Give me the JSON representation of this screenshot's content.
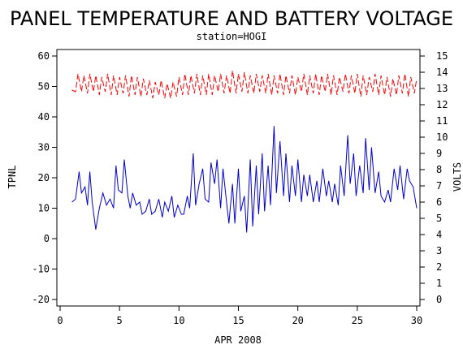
{
  "chart_data": {
    "type": "line",
    "title": "PANEL TEMPERATURE AND BATTERY VOLTAGE",
    "subtitle": "station=HOGI",
    "xlabel": "APR 2008",
    "ylabel_left": "TPNL",
    "ylabel_right": "VOLTS",
    "xlim": [
      0,
      30
    ],
    "ylim_left": [
      -20,
      60
    ],
    "ylim_right": [
      0,
      15
    ],
    "x_ticks": [
      "0",
      "5",
      "10",
      "15",
      "20",
      "25",
      "30"
    ],
    "y_left_ticks": [
      "-20",
      "-10",
      "0",
      "10",
      "20",
      "30",
      "40",
      "50",
      "60"
    ],
    "y_right_ticks": [
      "0",
      "1",
      "2",
      "3",
      "4",
      "5",
      "6",
      "7",
      "8",
      "9",
      "10",
      "11",
      "12",
      "13",
      "14",
      "15"
    ],
    "grid": false,
    "series": [
      {
        "color": "#0000cc",
        "axis": "left",
        "x": [
          1.0,
          1.3,
          1.6,
          1.8,
          2.1,
          2.3,
          2.5,
          2.7,
          3.0,
          3.3,
          3.6,
          3.9,
          4.2,
          4.5,
          4.7,
          4.9,
          5.2,
          5.4,
          5.7,
          5.9,
          6.1,
          6.4,
          6.7,
          6.9,
          7.2,
          7.5,
          7.7,
          8.0,
          8.3,
          8.6,
          8.8,
          9.1,
          9.4,
          9.6,
          9.9,
          10.2,
          10.4,
          10.7,
          10.9,
          11.2,
          11.4,
          11.7,
          12.0,
          12.2,
          12.5,
          12.7,
          13.0,
          13.2,
          13.5,
          13.7,
          14.0,
          14.2,
          14.5,
          14.7,
          15.0,
          15.2,
          15.5,
          15.7,
          16.0,
          16.2,
          16.5,
          16.7,
          17.0,
          17.2,
          17.5,
          17.7,
          18.0,
          18.2,
          18.5,
          18.8,
          19.0,
          19.3,
          19.5,
          19.8,
          20.0,
          20.3,
          20.5,
          20.8,
          21.0,
          21.3,
          21.6,
          21.8,
          22.1,
          22.4,
          22.6,
          22.9,
          23.1,
          23.4,
          23.6,
          23.9,
          24.2,
          24.4,
          24.7,
          24.9,
          25.2,
          25.5,
          25.7,
          26.0,
          26.2,
          26.5,
          26.8,
          27.0,
          27.3,
          27.6,
          27.8,
          28.1,
          28.4,
          28.6,
          28.9,
          29.2,
          29.4,
          29.7,
          30.0
        ],
        "y": [
          12,
          13,
          22,
          15,
          17,
          11,
          22,
          12,
          3,
          10,
          15,
          11,
          13,
          10,
          24,
          16,
          15,
          26,
          14,
          10,
          15,
          11,
          12,
          8,
          9,
          13,
          8,
          9,
          13,
          7,
          12,
          9,
          14,
          7,
          11,
          8,
          8,
          14,
          10,
          28,
          11,
          18,
          23,
          13,
          12,
          25,
          18,
          26,
          10,
          23,
          12,
          5,
          18,
          5,
          23,
          9,
          14,
          2,
          26,
          4,
          24,
          8,
          28,
          9,
          24,
          11,
          37,
          15,
          32,
          14,
          28,
          12,
          24,
          14,
          26,
          12,
          21,
          14,
          21,
          12,
          19,
          12,
          23,
          14,
          19,
          12,
          18,
          11,
          24,
          14,
          34,
          18,
          28,
          14,
          24,
          15,
          33,
          16,
          30,
          15,
          22,
          14,
          12,
          16,
          12,
          23,
          16,
          24,
          13,
          23,
          19,
          17,
          10
        ]
      },
      {
        "color": "#ff0000",
        "axis": "right",
        "dashed": true,
        "x": [
          1.0,
          1.3,
          1.5,
          1.8,
          2.0,
          2.3,
          2.5,
          2.8,
          3.0,
          3.3,
          3.5,
          3.8,
          4.0,
          4.3,
          4.5,
          4.8,
          5.0,
          5.3,
          5.5,
          5.8,
          6.0,
          6.3,
          6.5,
          6.8,
          7.0,
          7.3,
          7.5,
          7.8,
          8.0,
          8.3,
          8.5,
          8.8,
          9.0,
          9.3,
          9.5,
          9.8,
          10.0,
          10.3,
          10.5,
          10.8,
          11.0,
          11.3,
          11.5,
          11.8,
          12.0,
          12.3,
          12.5,
          12.8,
          13.0,
          13.3,
          13.5,
          13.8,
          14.0,
          14.3,
          14.5,
          14.8,
          15.0,
          15.3,
          15.5,
          15.8,
          16.0,
          16.3,
          16.5,
          16.8,
          17.0,
          17.3,
          17.5,
          17.8,
          18.0,
          18.3,
          18.5,
          18.8,
          19.0,
          19.3,
          19.5,
          19.8,
          20.0,
          20.3,
          20.5,
          20.8,
          21.0,
          21.3,
          21.5,
          21.8,
          22.0,
          22.3,
          22.5,
          22.8,
          23.0,
          23.3,
          23.5,
          23.8,
          24.0,
          24.3,
          24.5,
          24.8,
          25.0,
          25.3,
          25.5,
          25.8,
          26.0,
          26.3,
          26.5,
          26.8,
          27.0,
          27.3,
          27.5,
          27.8,
          28.0,
          28.3,
          28.5,
          28.8,
          29.0,
          29.3,
          29.5,
          29.8,
          30.0
        ],
        "y": [
          12.9,
          12.8,
          13.9,
          12.8,
          13.8,
          12.7,
          13.9,
          12.8,
          13.8,
          12.6,
          13.7,
          12.8,
          13.9,
          12.6,
          13.8,
          12.6,
          13.7,
          12.7,
          13.8,
          12.5,
          13.8,
          12.6,
          13.7,
          12.5,
          13.6,
          12.6,
          13.5,
          12.4,
          13.4,
          12.6,
          13.5,
          12.4,
          13.3,
          12.4,
          13.4,
          12.5,
          13.7,
          12.6,
          13.9,
          12.6,
          13.8,
          12.7,
          13.9,
          12.6,
          13.8,
          12.6,
          13.9,
          12.6,
          13.8,
          12.8,
          13.9,
          12.7,
          13.8,
          12.7,
          14.1,
          12.7,
          13.9,
          12.8,
          14.0,
          12.7,
          13.8,
          12.7,
          13.9,
          12.8,
          13.8,
          12.7,
          13.9,
          12.6,
          13.8,
          12.7,
          13.9,
          12.6,
          13.8,
          12.7,
          13.8,
          12.6,
          13.7,
          12.8,
          13.9,
          12.6,
          13.8,
          12.7,
          13.9,
          12.6,
          13.8,
          12.8,
          13.9,
          12.6,
          13.8,
          12.6,
          13.7,
          12.8,
          13.9,
          12.7,
          13.8,
          12.7,
          13.9,
          12.5,
          13.8,
          12.6,
          13.7,
          12.8,
          13.9,
          12.6,
          13.8,
          12.6,
          13.7,
          12.5,
          13.6,
          12.6,
          13.8,
          12.7,
          13.9,
          12.5,
          13.7,
          12.7,
          13.6
        ]
      }
    ]
  }
}
